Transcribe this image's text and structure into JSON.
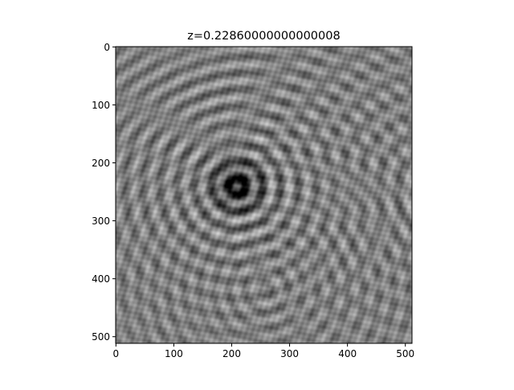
{
  "chart_data": {
    "type": "heatmap",
    "title": "z=0.22860000000000008",
    "xlabel": "",
    "ylabel": "",
    "colormap": "gray",
    "image_size": [
      512,
      512
    ],
    "xlim": [
      0,
      511
    ],
    "ylim": [
      511,
      0
    ],
    "x_ticks": [
      0,
      100,
      200,
      300,
      400,
      500
    ],
    "y_ticks": [
      0,
      100,
      200,
      300,
      400,
      500
    ],
    "x_tick_labels": [
      "0",
      "100",
      "200",
      "300",
      "400",
      "500"
    ],
    "y_tick_labels": [
      "0",
      "100",
      "200",
      "300",
      "400",
      "500"
    ],
    "grid": false,
    "legend": "none",
    "dark_center": [
      210,
      240
    ]
  }
}
